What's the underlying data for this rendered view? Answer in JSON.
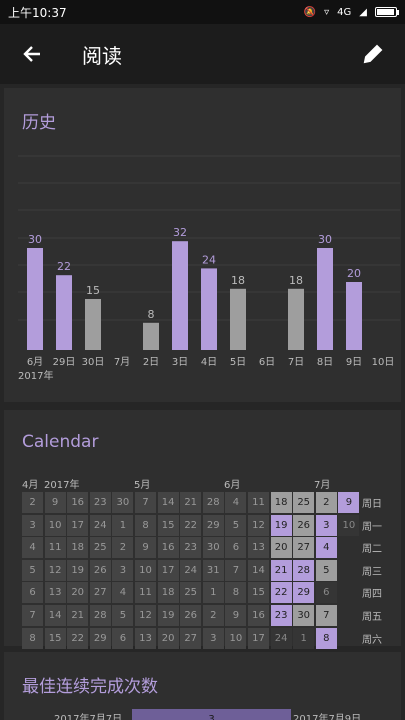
{
  "status_bar": {
    "time": "上午10:37",
    "net": "4G"
  },
  "header": {
    "title": "阅读"
  },
  "history": {
    "title": "历史",
    "year_label": "2017年"
  },
  "chart_data": {
    "type": "bar",
    "categories": [
      "6月",
      "29日",
      "30日",
      "7月",
      "2日",
      "3日",
      "4日",
      "5日",
      "6日",
      "7日",
      "8日",
      "9日",
      "10日"
    ],
    "values": [
      30,
      22,
      15,
      null,
      8,
      32,
      24,
      18,
      null,
      18,
      30,
      20,
      null
    ],
    "colors": [
      "#b39ddb",
      "#b39ddb",
      "#9e9e9e",
      null,
      "#9e9e9e",
      "#b39ddb",
      "#b39ddb",
      "#9e9e9e",
      null,
      "#9e9e9e",
      "#b39ddb",
      "#b39ddb",
      null
    ],
    "title": "历史",
    "grid": true
  },
  "calendar": {
    "title": "Calendar",
    "months": [
      "4月",
      "2017年",
      "5月",
      "6月",
      "7月"
    ],
    "weekdays": [
      "周日",
      "周一",
      "周二",
      "周三",
      "周四",
      "周五",
      "周六"
    ],
    "columns": [
      [
        "2",
        "3",
        "4",
        "5",
        "6",
        "7",
        "8"
      ],
      [
        "9",
        "10",
        "11",
        "12",
        "13",
        "14",
        "15"
      ],
      [
        "16",
        "17",
        "18",
        "19",
        "20",
        "21",
        "22"
      ],
      [
        "23",
        "24",
        "25",
        "26",
        "27",
        "28",
        "29"
      ],
      [
        "30",
        "1",
        "2",
        "3",
        "4",
        "5",
        "6"
      ],
      [
        "7",
        "8",
        "9",
        "10",
        "11",
        "12",
        "13"
      ],
      [
        "14",
        "15",
        "16",
        "17",
        "18",
        "19",
        "20"
      ],
      [
        "21",
        "22",
        "23",
        "24",
        "25",
        "26",
        "27"
      ],
      [
        "28",
        "29",
        "30",
        "31",
        "1",
        "2",
        "3"
      ],
      [
        "4",
        "5",
        "6",
        "7",
        "8",
        "9",
        "10"
      ],
      [
        "11",
        "12",
        "13",
        "14",
        "15",
        "16",
        "17"
      ],
      [
        "18",
        "19",
        "20",
        "21",
        "22",
        "23",
        "24"
      ],
      [
        "25",
        "26",
        "27",
        "28",
        "29",
        "30",
        "1"
      ],
      [
        "2",
        "3",
        "4",
        "5",
        "6",
        "7",
        "8"
      ],
      [
        "9",
        "10",
        "",
        "",
        "",
        "",
        ""
      ]
    ],
    "highlight": {
      "11": {
        "0": "gray",
        "1": "purple",
        "2": "gray",
        "3": "purple",
        "4": "purple",
        "5": "purple",
        "6": "dark"
      },
      "12": {
        "0": "gray",
        "1": "gray",
        "2": "gray",
        "3": "purple",
        "4": "purple",
        "5": "gray",
        "6": "dark"
      },
      "13": {
        "0": "gray",
        "1": "purple",
        "2": "purple",
        "3": "gray",
        "4": "dark",
        "5": "gray",
        "6": "purple"
      },
      "14": {
        "0": "purple",
        "1": "dark"
      }
    }
  },
  "streak": {
    "title": "最佳连续完成次数",
    "start_date": "2017年7月7日",
    "value": "3",
    "end_date": "2017年7月9日"
  }
}
